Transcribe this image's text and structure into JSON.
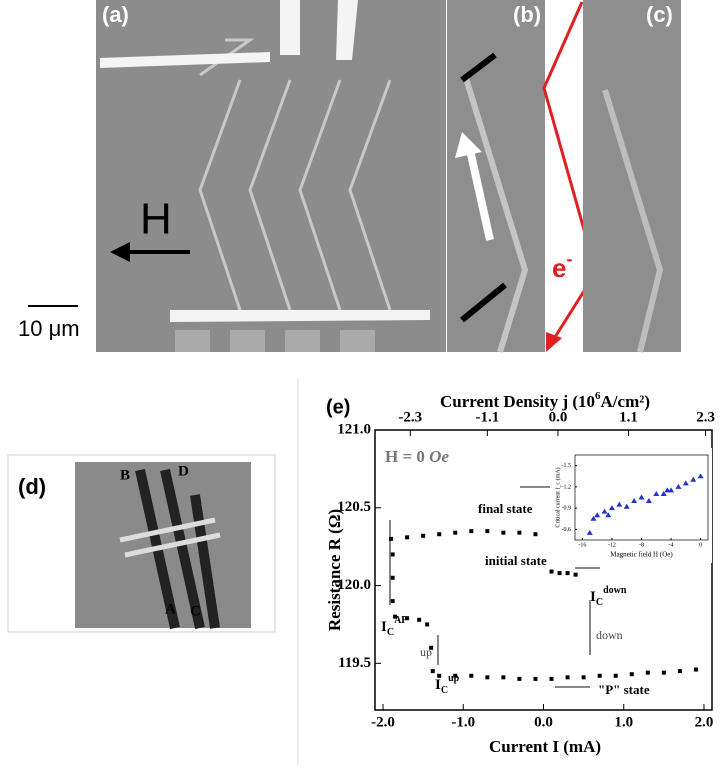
{
  "panels": {
    "a": {
      "label": "(a)",
      "field": "H",
      "scale": "10 μm"
    },
    "b": {
      "label": "(b)"
    },
    "c": {
      "label": "(c)",
      "electron": {
        "main": "e",
        "sup": "-"
      }
    },
    "d": {
      "label": "(d)",
      "contacts": [
        "B",
        "D",
        "A",
        "C"
      ]
    },
    "e": {
      "label": "(e)"
    }
  },
  "chart_data": [
    {
      "type": "scatter",
      "x_label": "Current I (mA)",
      "y_label": "Resistance R (Ω)",
      "x2_label": {
        "before": "Current Density j (10",
        "sup": "6",
        "after": "A/cm²)"
      },
      "xlim": [
        -2.1,
        2.1
      ],
      "xticks": [
        {
          "value": -2,
          "label": "-2.0"
        },
        {
          "value": -1,
          "label": "-1.0"
        },
        {
          "value": 0,
          "label": "0.0"
        },
        {
          "value": 1,
          "label": "1.0"
        },
        {
          "value": 2,
          "label": "2.0"
        }
      ],
      "x2lim": [
        -2.85,
        2.4
      ],
      "x2ticks": [
        -2.3,
        -1.1,
        {
          "value": 0,
          "label": "0.0"
        },
        1.1,
        2.3
      ],
      "ylim": [
        119.2,
        121.0
      ],
      "yticks": [
        119.5,
        {
          "value": 120,
          "label": "120.0"
        },
        120.5,
        {
          "value": 121,
          "label": "121.0"
        }
      ],
      "series": [
        {
          "color": "#000000",
          "x": [
            -1.9,
            -1.7,
            -1.5,
            -1.3,
            -1.1,
            -0.9,
            -0.7,
            -0.5,
            -0.3,
            -0.1,
            -1.88,
            -1.88,
            -1.88,
            -1.85,
            -1.7,
            -1.55,
            -1.45,
            -1.4,
            -1.38,
            -1.3,
            -1.1,
            -0.9,
            -0.7,
            -0.5,
            -0.3,
            -0.1,
            0.1,
            0.3,
            0.5,
            0.7,
            0.9,
            1.1,
            1.3,
            1.5,
            1.7,
            1.9,
            0.1,
            0.2,
            0.3,
            0.4
          ],
          "values": [
            120.3,
            120.31,
            120.32,
            120.33,
            120.34,
            120.35,
            120.35,
            120.34,
            120.34,
            120.33,
            119.9,
            120.05,
            120.2,
            119.8,
            119.79,
            119.78,
            119.75,
            119.6,
            119.45,
            119.42,
            119.42,
            119.42,
            119.41,
            119.41,
            119.4,
            119.4,
            119.4,
            119.41,
            119.41,
            119.42,
            119.42,
            119.43,
            119.44,
            119.44,
            119.45,
            119.46,
            120.09,
            120.08,
            120.08,
            120.07
          ]
        }
      ],
      "annotations": {
        "field": {
          "main": "H = 0 ",
          "ital": "Oe"
        },
        "final": "final state",
        "initial": "initial state",
        "p_state": "\"P\" state",
        "up": "up",
        "down": "down",
        "ic_ap": {
          "main": "I",
          "sub": "C",
          "sup": "AP"
        },
        "ic_up": {
          "main": "I",
          "sub": "C",
          "sup": "up"
        },
        "ic_down": {
          "main": "I",
          "sub": "C",
          "sup": "down"
        }
      }
    },
    {
      "type": "scatter",
      "x_label": "Magnetic field H (Oe)",
      "y_label": "Critical current I_c (mA)",
      "xlim": [
        -17,
        1
      ],
      "xticks": [
        -16,
        -12,
        -8,
        -4,
        0
      ],
      "ylim": [
        -0.45,
        -1.65
      ],
      "yticks": [
        -1.5,
        -1.2,
        -0.9,
        -0.6
      ],
      "series": [
        {
          "color": "#2233cc",
          "x": [
            -15,
            -14.5,
            -14,
            -13,
            -12.5,
            -12,
            -11,
            -10,
            -9,
            -8,
            -7,
            -6,
            -5,
            -4.5,
            -4,
            -3,
            -2,
            -1,
            0
          ],
          "values": [
            -0.55,
            -0.75,
            -0.8,
            -0.85,
            -0.8,
            -0.9,
            -0.95,
            -0.92,
            -1.0,
            -1.05,
            -1.0,
            -1.1,
            -1.1,
            -1.15,
            -1.15,
            -1.2,
            -1.25,
            -1.3,
            -1.35
          ]
        }
      ]
    }
  ]
}
